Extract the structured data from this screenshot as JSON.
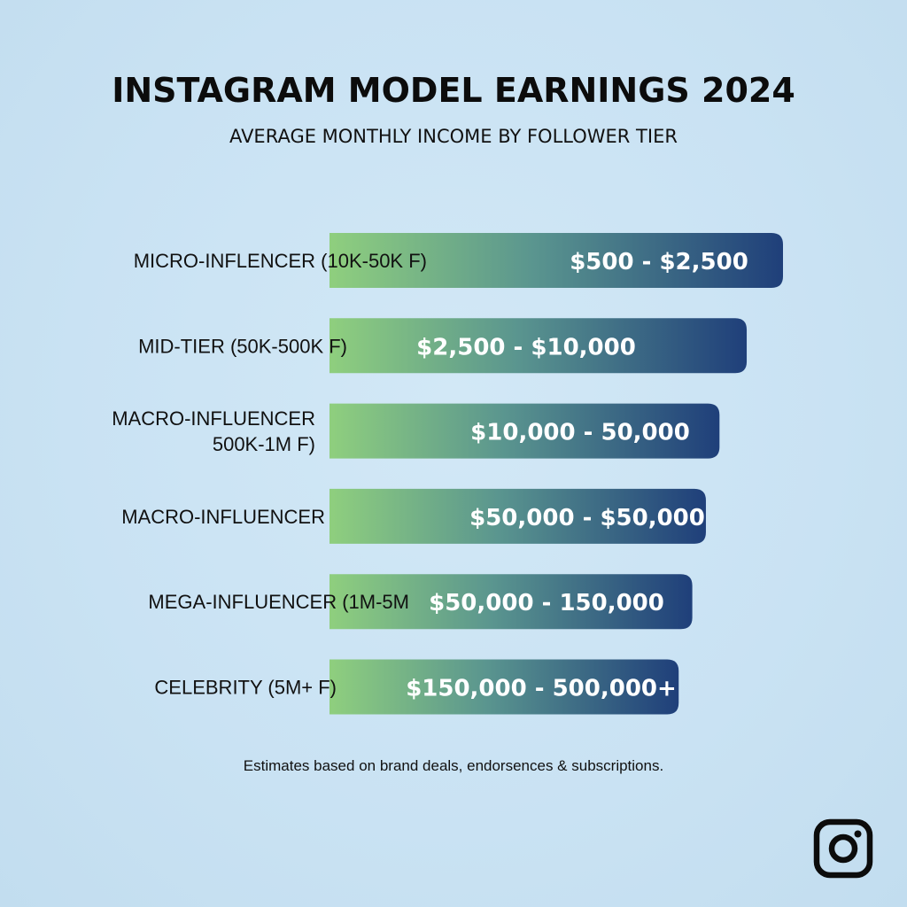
{
  "header": {
    "title": "INSTAGRAM MODEL EARNINGS 2024",
    "subtitle": "AVERAGE MONTHLY INCOME BY FOLLOWER TIER"
  },
  "footnote": "Estimates based on brand deals, endorsences & subscriptions.",
  "logo": {
    "icon": "instagram-icon"
  },
  "colors": {
    "bar_start": "#8fcf7e",
    "bar_end": "#1f3f7a",
    "background": "#cce4f4",
    "text": "#111111"
  },
  "chart_data": {
    "type": "bar",
    "orientation": "horizontal",
    "title": "INSTAGRAM MODEL EARNINGS 2024",
    "subtitle": "AVERAGE MONTHLY INCOME BY FOLLOWER TIER",
    "categories": [
      [
        "MICRO-INFLENCER (10K-50K F)"
      ],
      [
        "MID-TIER (50K-500K F)"
      ],
      [
        "MACRO-INFLUENCER",
        "500K-1M F)"
      ],
      [
        "MACRO-INFLUENCER"
      ],
      [
        "MEGA-INFLUENCER (1M-5M"
      ],
      [
        "CELEBRITY (5M+ F)"
      ]
    ],
    "value_labels": [
      "$500 - $2,500",
      "$2,500 - $10,000",
      "$10,000 -  50,000",
      "$50,000 - $50,000",
      "$50,000 - 150,000",
      "$150,000 -  500,000+"
    ],
    "bar_length_fraction": [
      1.0,
      0.92,
      0.86,
      0.83,
      0.8,
      0.77
    ],
    "grid": false,
    "legend": "none"
  }
}
